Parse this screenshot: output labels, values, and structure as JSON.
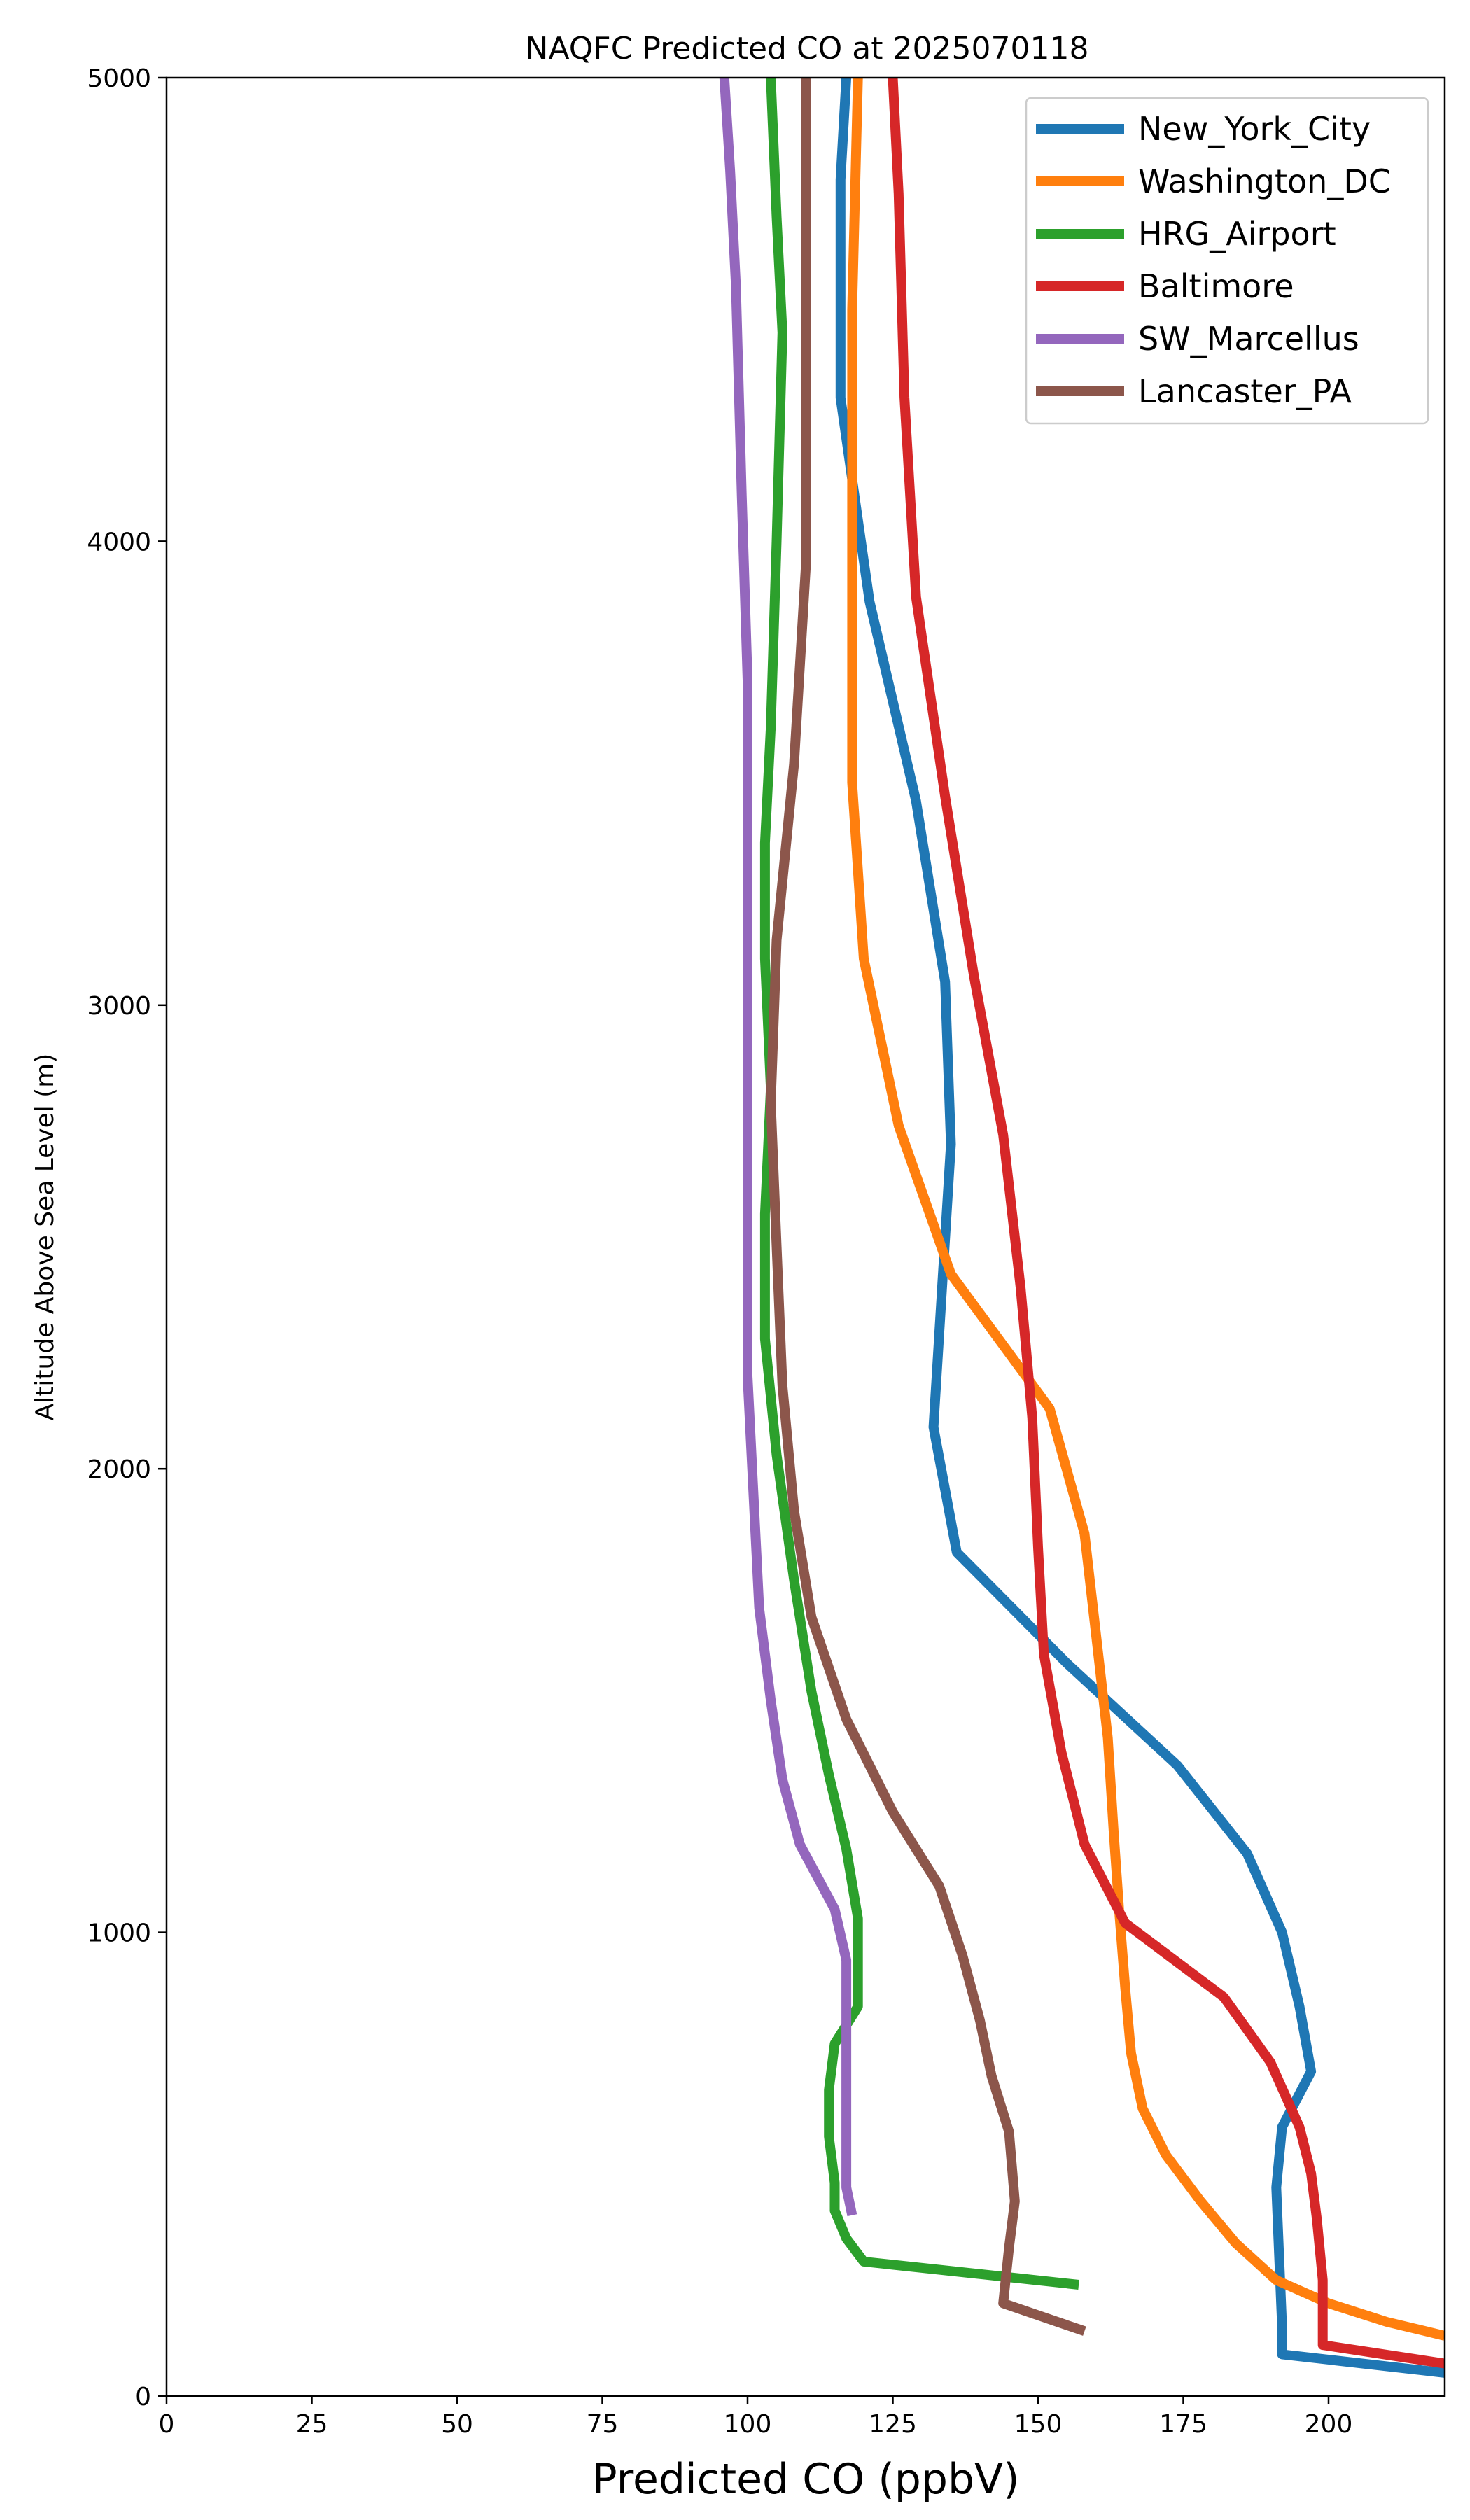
{
  "chart_data": {
    "type": "line",
    "title": "NAQFC Predicted CO at 2025070118",
    "xlabel": "Predicted CO (ppbV)",
    "ylabel": "Altitude Above Sea Level (m)",
    "xlim": [
      0,
      220
    ],
    "ylim": [
      0,
      5000
    ],
    "xticks": [
      "0",
      "25",
      "50",
      "75",
      "100",
      "125",
      "150",
      "175",
      "200"
    ],
    "yticks": [
      "0",
      "1000",
      "2000",
      "3000",
      "4000",
      "5000"
    ],
    "grid": false,
    "legend_position": "top-right",
    "series": [
      {
        "name": "New_York_City",
        "color": "#1f77b4",
        "points": [
          [
            220,
            50
          ],
          [
            192,
            90
          ],
          [
            192,
            150
          ],
          [
            191,
            450
          ],
          [
            192,
            580
          ],
          [
            197,
            700
          ],
          [
            195,
            840
          ],
          [
            192,
            1000
          ],
          [
            186,
            1170
          ],
          [
            174,
            1360
          ],
          [
            155,
            1580
          ],
          [
            136,
            1820
          ],
          [
            132,
            2090
          ],
          [
            135,
            2700
          ],
          [
            134,
            3050
          ],
          [
            129,
            3440
          ],
          [
            121,
            3870
          ],
          [
            116,
            4310
          ],
          [
            116,
            4780
          ],
          [
            117,
            5000
          ]
        ]
      },
      {
        "name": "Washington_DC",
        "color": "#ff7f0e",
        "points": [
          [
            220,
            130
          ],
          [
            210,
            160
          ],
          [
            200,
            200
          ],
          [
            191,
            250
          ],
          [
            184,
            330
          ],
          [
            178,
            420
          ],
          [
            172,
            520
          ],
          [
            168,
            620
          ],
          [
            166,
            740
          ],
          [
            165,
            880
          ],
          [
            164,
            1040
          ],
          [
            163,
            1220
          ],
          [
            162,
            1420
          ],
          [
            160,
            1640
          ],
          [
            158,
            1860
          ],
          [
            152,
            2130
          ],
          [
            135,
            2420
          ],
          [
            126,
            2740
          ],
          [
            120,
            3100
          ],
          [
            118,
            3480
          ],
          [
            118,
            4000
          ],
          [
            118,
            4500
          ],
          [
            119,
            5000
          ]
        ]
      },
      {
        "name": "HRG_Airport",
        "color": "#2ca02c",
        "points": [
          [
            157,
            240
          ],
          [
            120,
            290
          ],
          [
            117,
            340
          ],
          [
            115,
            400
          ],
          [
            115,
            460
          ],
          [
            114,
            560
          ],
          [
            114,
            660
          ],
          [
            115,
            760
          ],
          [
            119,
            840
          ],
          [
            119,
            1030
          ],
          [
            117,
            1180
          ],
          [
            114,
            1340
          ],
          [
            111,
            1520
          ],
          [
            108,
            1760
          ],
          [
            105,
            2030
          ],
          [
            103,
            2280
          ],
          [
            103,
            2550
          ],
          [
            104,
            2820
          ],
          [
            103,
            3100
          ],
          [
            103,
            3350
          ],
          [
            104,
            3600
          ],
          [
            105,
            4000
          ],
          [
            106,
            4450
          ],
          [
            105,
            4700
          ],
          [
            104,
            5000
          ]
        ]
      },
      {
        "name": "Baltimore",
        "color": "#d62728",
        "points": [
          [
            220,
            70
          ],
          [
            199,
            110
          ],
          [
            199,
            250
          ],
          [
            198,
            380
          ],
          [
            197,
            480
          ],
          [
            195,
            580
          ],
          [
            190,
            720
          ],
          [
            182,
            860
          ],
          [
            165,
            1020
          ],
          [
            158,
            1190
          ],
          [
            154,
            1390
          ],
          [
            151,
            1600
          ],
          [
            150,
            1830
          ],
          [
            149,
            2110
          ],
          [
            147,
            2390
          ],
          [
            144,
            2720
          ],
          [
            139,
            3060
          ],
          [
            134,
            3450
          ],
          [
            129,
            3880
          ],
          [
            127,
            4310
          ],
          [
            126,
            4750
          ],
          [
            125,
            5000
          ]
        ]
      },
      {
        "name": "SW_Marcellus",
        "color": "#9467bd",
        "points": [
          [
            118,
            390
          ],
          [
            117,
            450
          ],
          [
            117,
            600
          ],
          [
            117,
            750
          ],
          [
            117,
            940
          ],
          [
            115,
            1050
          ],
          [
            109,
            1190
          ],
          [
            106,
            1330
          ],
          [
            104,
            1500
          ],
          [
            102,
            1700
          ],
          [
            101,
            1950
          ],
          [
            100,
            2200
          ],
          [
            100,
            2450
          ],
          [
            100,
            2700
          ],
          [
            100,
            2950
          ],
          [
            100,
            3100
          ],
          [
            100,
            3350
          ],
          [
            100,
            3700
          ],
          [
            99,
            4100
          ],
          [
            98,
            4550
          ],
          [
            97,
            4800
          ],
          [
            96,
            5000
          ]
        ]
      },
      {
        "name": "Lancaster_PA",
        "color": "#8c564b",
        "points": [
          [
            158,
            140
          ],
          [
            144,
            200
          ],
          [
            145,
            320
          ],
          [
            146,
            420
          ],
          [
            145,
            570
          ],
          [
            142,
            690
          ],
          [
            140,
            810
          ],
          [
            137,
            950
          ],
          [
            133,
            1100
          ],
          [
            125,
            1260
          ],
          [
            117,
            1460
          ],
          [
            111,
            1680
          ],
          [
            108,
            1910
          ],
          [
            106,
            2180
          ],
          [
            105,
            2480
          ],
          [
            104,
            2790
          ],
          [
            105,
            3140
          ],
          [
            108,
            3520
          ],
          [
            110,
            3940
          ],
          [
            110,
            4400
          ],
          [
            110,
            4800
          ],
          [
            110,
            5000
          ]
        ]
      }
    ]
  }
}
